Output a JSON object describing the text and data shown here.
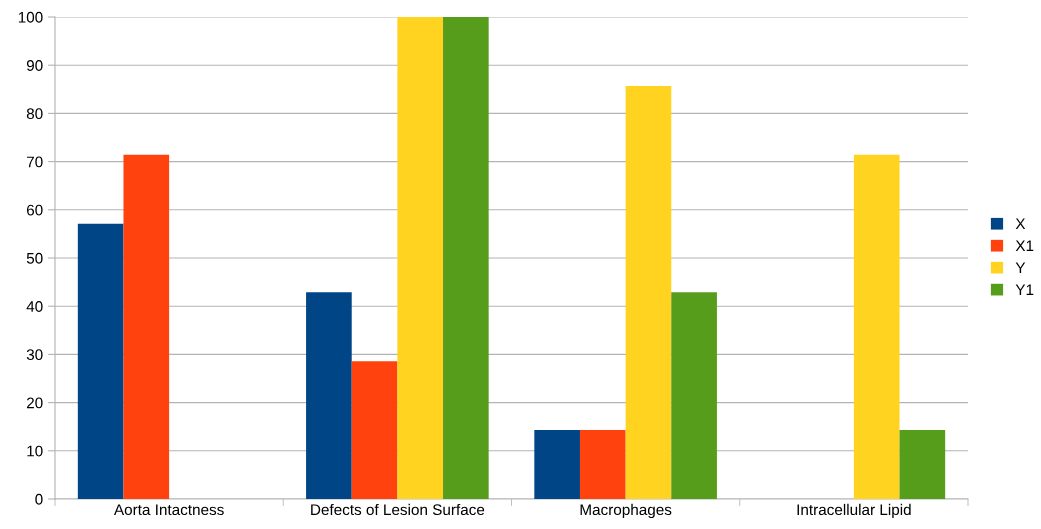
{
  "chart_data": {
    "type": "bar",
    "categories": [
      "Aorta Intactness",
      "Defects of Lesion Surface",
      "Macrophages",
      "Intracellular Lipid"
    ],
    "series": [
      {
        "name": "X",
        "color": "#004586",
        "values": [
          57.1,
          42.9,
          14.3,
          0
        ]
      },
      {
        "name": "X1",
        "color": "#ff420e",
        "values": [
          71.4,
          28.6,
          14.3,
          0
        ]
      },
      {
        "name": "Y",
        "color": "#ffd320",
        "values": [
          0,
          100,
          85.7,
          71.4
        ]
      },
      {
        "name": "Y1",
        "color": "#579d1c",
        "values": [
          0,
          100,
          42.9,
          14.3
        ]
      }
    ],
    "ylim": [
      0,
      100
    ],
    "yticks": [
      0,
      10,
      20,
      30,
      40,
      50,
      60,
      70,
      80,
      90,
      100
    ],
    "grid": "y",
    "legend": "right"
  }
}
